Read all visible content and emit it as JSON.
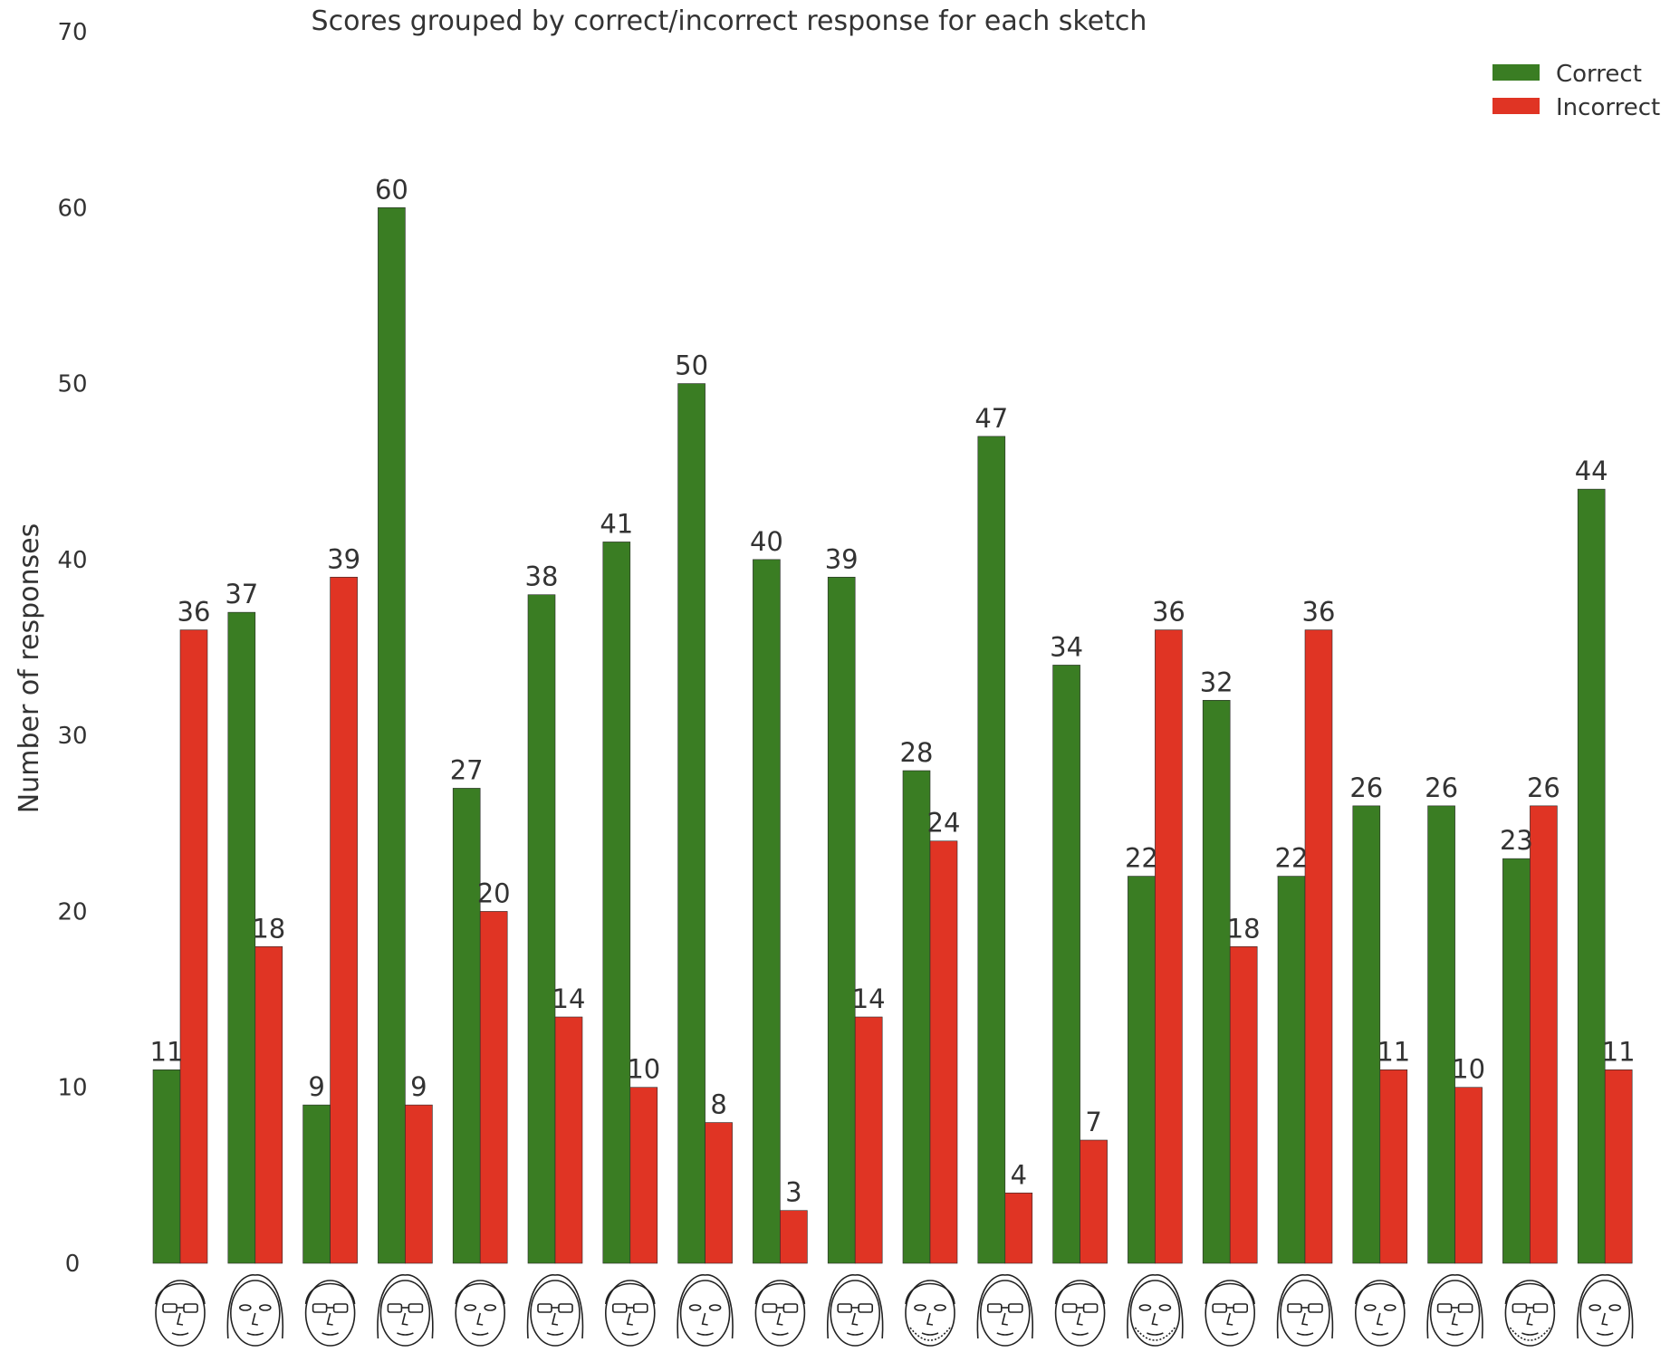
{
  "chart_data": {
    "type": "bar",
    "title": "Scores grouped by correct/incorrect response for each sketch",
    "xlabel": "",
    "ylabel": "Number of responses",
    "ylim": [
      0,
      70
    ],
    "yticks": [
      0,
      10,
      20,
      30,
      40,
      50,
      60,
      70
    ],
    "grid": false,
    "legend_position": "top-right",
    "categories": [
      "sketch-1",
      "sketch-2",
      "sketch-3",
      "sketch-4",
      "sketch-5",
      "sketch-6",
      "sketch-7",
      "sketch-8",
      "sketch-9",
      "sketch-10",
      "sketch-11",
      "sketch-12",
      "sketch-13",
      "sketch-14",
      "sketch-15",
      "sketch-16",
      "sketch-17",
      "sketch-18",
      "sketch-19",
      "sketch-20"
    ],
    "series": [
      {
        "name": "Correct",
        "color": "#3a7d23",
        "values": [
          11,
          37,
          9,
          60,
          27,
          38,
          41,
          50,
          40,
          39,
          28,
          47,
          34,
          22,
          32,
          22,
          26,
          26,
          23,
          44
        ]
      },
      {
        "name": "Incorrect",
        "color": "#e03424",
        "values": [
          36,
          18,
          39,
          9,
          20,
          14,
          10,
          8,
          3,
          14,
          24,
          4,
          7,
          36,
          18,
          36,
          11,
          10,
          26,
          11
        ]
      }
    ]
  },
  "face_icons": [
    "sketch-face-icon"
  ]
}
